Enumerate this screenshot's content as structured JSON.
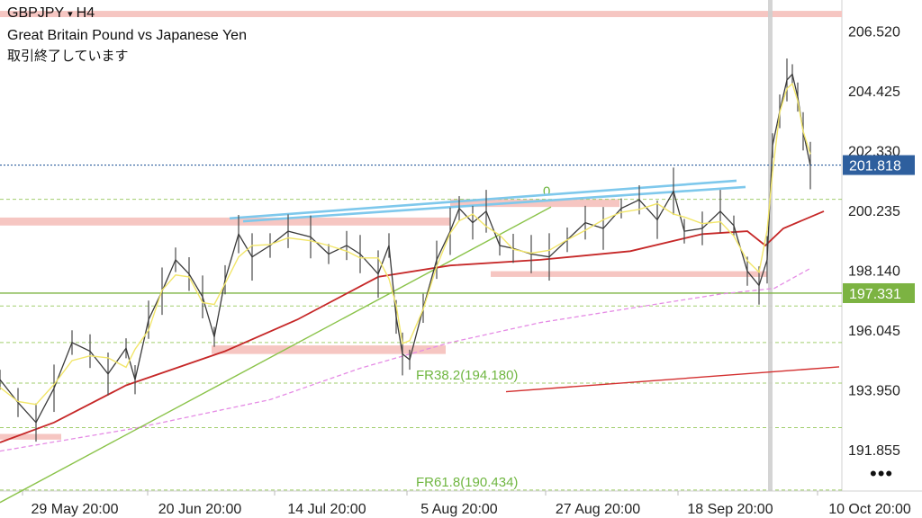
{
  "header": {
    "symbol": "GBPJPY",
    "caret": "▾",
    "timeframe": "H4",
    "description": "Great Britain Pound vs Japanese Yen",
    "status": "取引終了しています",
    "more": "•••"
  },
  "chart_data": {
    "type": "candlestick",
    "ylim": [
      190.4,
      207.6
    ],
    "y_ticks": [
      206.52,
      204.425,
      202.33,
      200.235,
      198.14,
      196.045,
      193.95,
      191.855
    ],
    "x_ticks": [
      "29 May 20:00",
      "20 Jun 20:00",
      "14 Jul 20:00",
      "5 Aug 20:00",
      "27 Aug 20:00",
      "18 Sep 20:00",
      "10 Oct 20:00"
    ],
    "current_price": {
      "label": "201.818",
      "value": 201.818,
      "color": "#2e5f9e"
    },
    "support_line": {
      "label": "197.331",
      "value": 197.331,
      "color": "#7cb342"
    },
    "fibonacci": [
      {
        "label": "0",
        "value": 200.62
      },
      {
        "label": "FR38.2(194.180)",
        "value": 194.18
      },
      {
        "label": "FR61.8(190.434)",
        "value": 190.434
      }
    ],
    "fib_extra_levels": [
      196.88,
      195.6,
      192.62
    ],
    "zones": [
      {
        "x0": 0,
        "x1": 935,
        "y0": 207.22,
        "y1": 207.0
      },
      {
        "x0": 0,
        "x1": 500,
        "y0": 199.98,
        "y1": 199.7
      },
      {
        "x0": 500,
        "x1": 688,
        "y0": 200.62,
        "y1": 200.35
      },
      {
        "x0": 235,
        "x1": 495,
        "y0": 195.5,
        "y1": 195.2
      },
      {
        "x0": 0,
        "x1": 68,
        "y0": 192.4,
        "y1": 192.2
      },
      {
        "x0": 545,
        "x1": 852,
        "y0": 198.1,
        "y1": 197.9
      }
    ],
    "trend_lines": [
      {
        "points": [
          [
            255,
            199.95
          ],
          [
            818,
            201.27
          ]
        ],
        "color": "#7ec8ec"
      },
      {
        "points": [
          [
            270,
            199.85
          ],
          [
            828,
            201.05
          ]
        ],
        "color": "#7ec8ec"
      },
      {
        "points": [
          [
            0,
            190.0
          ],
          [
            612,
            200.35
          ]
        ],
        "color": "#8bc34a"
      },
      {
        "points": [
          [
            562,
            193.88
          ],
          [
            932,
            194.75
          ]
        ],
        "color": "#d32f2f"
      }
    ],
    "ma_slow": {
      "color": "#c62828",
      "points": [
        [
          0,
          192.1
        ],
        [
          60,
          192.8
        ],
        [
          140,
          194.1
        ],
        [
          250,
          195.3
        ],
        [
          330,
          196.4
        ],
        [
          420,
          197.9
        ],
        [
          500,
          198.3
        ],
        [
          600,
          198.5
        ],
        [
          700,
          198.8
        ],
        [
          780,
          199.4
        ],
        [
          830,
          199.5
        ],
        [
          850,
          199.0
        ],
        [
          870,
          199.6
        ],
        [
          915,
          200.2
        ]
      ]
    },
    "ma_dashed": {
      "color": "#e58ce5",
      "points": [
        [
          0,
          191.8
        ],
        [
          150,
          192.6
        ],
        [
          300,
          193.6
        ],
        [
          400,
          194.7
        ],
        [
          500,
          195.6
        ],
        [
          600,
          196.3
        ],
        [
          700,
          196.8
        ],
        [
          800,
          197.3
        ],
        [
          860,
          197.5
        ],
        [
          900,
          198.2
        ]
      ]
    },
    "price": {
      "color": "#3b3b3b",
      "points": [
        [
          0,
          194.3
        ],
        [
          20,
          193.5
        ],
        [
          40,
          192.8
        ],
        [
          60,
          194.0
        ],
        [
          80,
          195.6
        ],
        [
          100,
          195.3
        ],
        [
          120,
          194.5
        ],
        [
          140,
          195.4
        ],
        [
          150,
          194.3
        ],
        [
          165,
          196.4
        ],
        [
          180,
          197.4
        ],
        [
          195,
          198.5
        ],
        [
          210,
          198.0
        ],
        [
          225,
          197.2
        ],
        [
          238,
          195.8
        ],
        [
          250,
          197.8
        ],
        [
          265,
          199.4
        ],
        [
          280,
          198.6
        ],
        [
          300,
          199.0
        ],
        [
          320,
          199.5
        ],
        [
          345,
          199.3
        ],
        [
          365,
          198.7
        ],
        [
          385,
          199.0
        ],
        [
          400,
          198.7
        ],
        [
          420,
          198.0
        ],
        [
          432,
          199.0
        ],
        [
          440,
          196.5
        ],
        [
          447,
          195.2
        ],
        [
          455,
          195.0
        ],
        [
          470,
          196.8
        ],
        [
          485,
          198.5
        ],
        [
          500,
          199.5
        ],
        [
          510,
          200.3
        ],
        [
          525,
          199.8
        ],
        [
          540,
          200.2
        ],
        [
          555,
          199.0
        ],
        [
          570,
          198.9
        ],
        [
          590,
          198.7
        ],
        [
          610,
          198.6
        ],
        [
          630,
          199.2
        ],
        [
          650,
          199.8
        ],
        [
          670,
          199.6
        ],
        [
          690,
          200.3
        ],
        [
          710,
          200.6
        ],
        [
          730,
          199.9
        ],
        [
          748,
          200.9
        ],
        [
          760,
          199.5
        ],
        [
          780,
          199.6
        ],
        [
          800,
          200.2
        ],
        [
          815,
          199.7
        ],
        [
          830,
          198.1
        ],
        [
          843,
          197.6
        ],
        [
          852,
          198.5
        ],
        [
          858,
          202.5
        ],
        [
          866,
          203.7
        ],
        [
          874,
          204.8
        ],
        [
          880,
          205.0
        ],
        [
          886,
          204.2
        ],
        [
          892,
          203.0
        ],
        [
          900,
          201.8
        ]
      ]
    }
  }
}
